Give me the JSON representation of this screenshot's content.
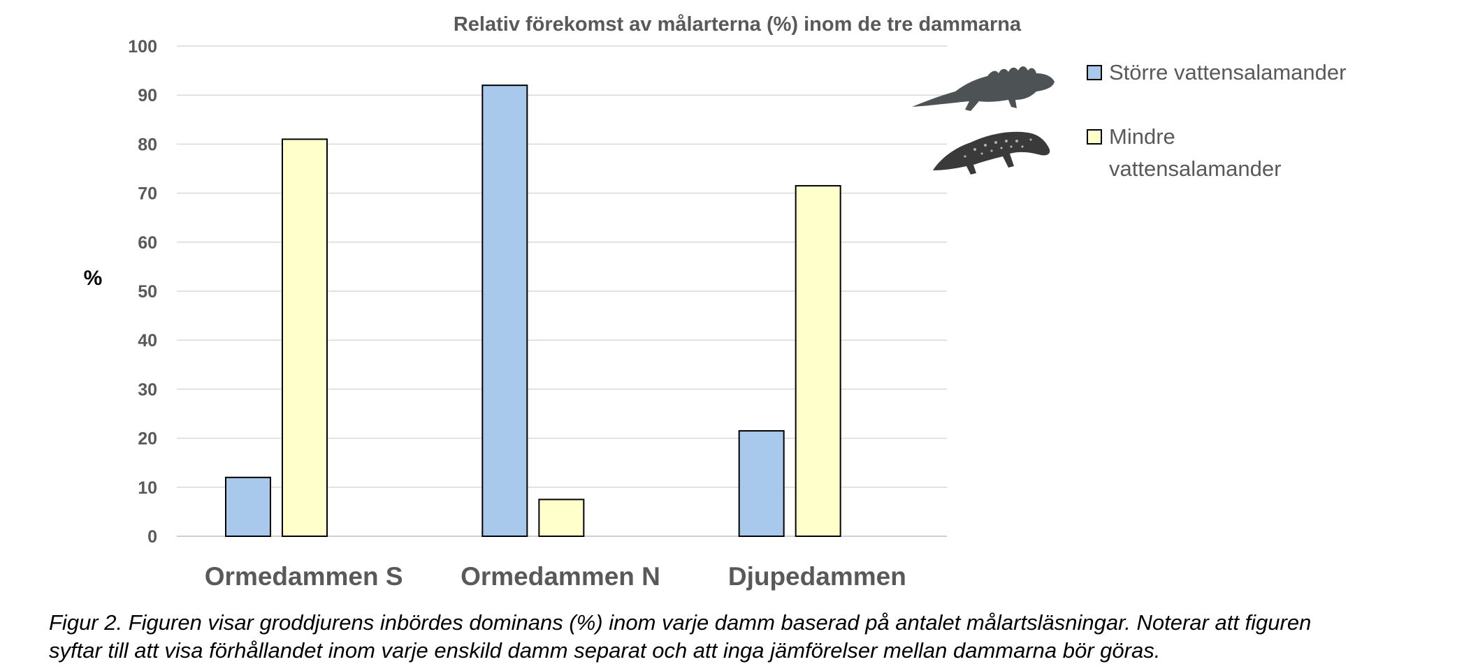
{
  "chart_data": {
    "type": "bar",
    "title": "Relativ förekomst av målarterna (%) inom de tre dammarna",
    "ylabel": "%",
    "xlabel": "",
    "ylim": [
      0,
      100
    ],
    "yticks": [
      0,
      10,
      20,
      30,
      40,
      50,
      60,
      70,
      80,
      90,
      100
    ],
    "categories": [
      "Ormedammen S",
      "Ormedammen N",
      "Djupedammen"
    ],
    "series": [
      {
        "name": "Större vattensalamander",
        "color": "#a9c9ec",
        "values": [
          12,
          92,
          21.5
        ]
      },
      {
        "name": "Mindre vattensalamander",
        "color": "#ffffcc",
        "values": [
          81,
          7.5,
          71.5
        ]
      }
    ],
    "legend_label_lines": [
      [
        "Större vattensalamander"
      ],
      [
        "Mindre",
        "vattensalamander"
      ]
    ],
    "legend_position": "right",
    "grid": true
  },
  "caption": {
    "line1": "Figur 2. Figuren visar groddjurens inbördes dominans (%) inom varje damm baserad på antalet målartsläsningar. Noterar att figuren",
    "line2": "syftar till att visa förhållandet inom varje enskild damm separat och att inga jämförelser mellan dammarna bör göras."
  },
  "colors": {
    "axis_text": "#595959",
    "gridline": "#d9d9d9",
    "bar_stroke": "#000000",
    "newt_great": "#4d5355",
    "newt_smooth": "#3a3a3a"
  }
}
